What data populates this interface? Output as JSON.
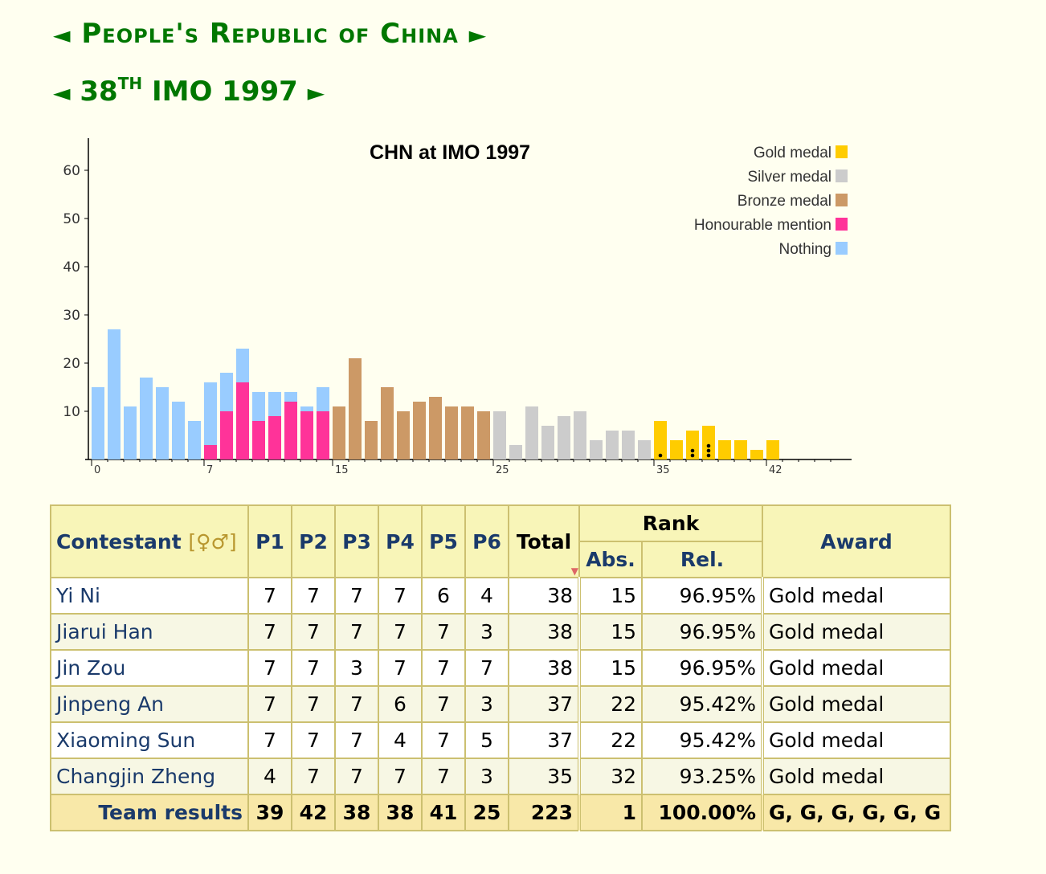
{
  "header": {
    "country_title": "People's Republic of China",
    "prev_arrow": "◄",
    "next_arrow": "►",
    "imo_prefix": "38",
    "imo_suffix": "TH",
    "imo_rest": "IMO 1997"
  },
  "chart_data": {
    "type": "bar",
    "title": "CHN at IMO 1997",
    "xlabel": "",
    "ylabel": "",
    "xlim": [
      0,
      42
    ],
    "ylim": [
      0,
      65
    ],
    "yticks": [
      10,
      20,
      30,
      40,
      50,
      60
    ],
    "xticks": [
      0,
      7,
      15,
      25,
      35,
      42
    ],
    "legend_position": "top-right",
    "colors": {
      "gold": "#ffcc00",
      "silver": "#cccccc",
      "bronze": "#cc9966",
      "hm": "#ff3399",
      "nothing": "#99ccff"
    },
    "legend": [
      {
        "label": "Gold medal",
        "key": "gold"
      },
      {
        "label": "Silver medal",
        "key": "silver"
      },
      {
        "label": "Bronze medal",
        "key": "bronze"
      },
      {
        "label": "Honourable mention",
        "key": "hm"
      },
      {
        "label": "Nothing",
        "key": "nothing"
      }
    ],
    "scores": [
      0,
      1,
      2,
      3,
      4,
      5,
      6,
      7,
      8,
      9,
      10,
      11,
      12,
      13,
      14,
      15,
      16,
      17,
      18,
      19,
      20,
      21,
      22,
      23,
      24,
      25,
      26,
      27,
      28,
      29,
      30,
      31,
      32,
      33,
      34,
      35,
      36,
      37,
      38,
      39,
      40,
      41,
      42
    ],
    "nothing": [
      15,
      27,
      11,
      17,
      15,
      12,
      8,
      13,
      8,
      7,
      6,
      5,
      2,
      1,
      5,
      0,
      0,
      0,
      0,
      0,
      0,
      0,
      0,
      0,
      0,
      0,
      0,
      0,
      0,
      0,
      0,
      0,
      0,
      0,
      0,
      0,
      0,
      0,
      0,
      0,
      0,
      0,
      0
    ],
    "hm": [
      0,
      0,
      0,
      0,
      0,
      0,
      0,
      3,
      10,
      16,
      8,
      9,
      12,
      10,
      10,
      0,
      0,
      0,
      0,
      0,
      0,
      0,
      0,
      0,
      0,
      0,
      0,
      0,
      0,
      0,
      0,
      0,
      0,
      0,
      0,
      0,
      0,
      0,
      0,
      0,
      0,
      0,
      0
    ],
    "bronze": [
      0,
      0,
      0,
      0,
      0,
      0,
      0,
      0,
      0,
      0,
      0,
      0,
      0,
      0,
      0,
      11,
      21,
      8,
      15,
      10,
      12,
      13,
      11,
      11,
      10,
      0,
      0,
      0,
      0,
      0,
      0,
      0,
      0,
      0,
      0,
      0,
      0,
      0,
      0,
      0,
      0,
      0,
      0
    ],
    "silver": [
      0,
      0,
      0,
      0,
      0,
      0,
      0,
      0,
      0,
      0,
      0,
      0,
      0,
      0,
      0,
      0,
      0,
      0,
      0,
      0,
      0,
      0,
      0,
      0,
      0,
      10,
      3,
      11,
      7,
      9,
      10,
      4,
      6,
      6,
      4,
      0,
      0,
      0,
      0,
      0,
      0,
      0,
      0
    ],
    "gold": [
      0,
      0,
      0,
      0,
      0,
      0,
      0,
      0,
      0,
      0,
      0,
      0,
      0,
      0,
      0,
      0,
      0,
      0,
      0,
      0,
      0,
      0,
      0,
      0,
      0,
      0,
      0,
      0,
      0,
      0,
      0,
      0,
      0,
      0,
      0,
      8,
      4,
      6,
      7,
      4,
      4,
      2,
      4
    ],
    "team_markers": [
      {
        "score": 35,
        "count": 1
      },
      {
        "score": 37,
        "count": 2
      },
      {
        "score": 38,
        "count": 3
      }
    ]
  },
  "table": {
    "headers": {
      "contestant": "Contestant",
      "gender": "[♀♂]",
      "p1": "P1",
      "p2": "P2",
      "p3": "P3",
      "p4": "P4",
      "p5": "P5",
      "p6": "P6",
      "total": "Total",
      "rank": "Rank",
      "abs": "Abs.",
      "rel": "Rel.",
      "award": "Award"
    },
    "rows": [
      {
        "name": "Yi Ni",
        "p1": "7",
        "p2": "7",
        "p3": "7",
        "p4": "7",
        "p5": "6",
        "p6": "4",
        "total": "38",
        "abs": "15",
        "rel": "96.95%",
        "award": "Gold medal"
      },
      {
        "name": "Jiarui Han",
        "p1": "7",
        "p2": "7",
        "p3": "7",
        "p4": "7",
        "p5": "7",
        "p6": "3",
        "total": "38",
        "abs": "15",
        "rel": "96.95%",
        "award": "Gold medal"
      },
      {
        "name": "Jin Zou",
        "p1": "7",
        "p2": "7",
        "p3": "3",
        "p4": "7",
        "p5": "7",
        "p6": "7",
        "total": "38",
        "abs": "15",
        "rel": "96.95%",
        "award": "Gold medal"
      },
      {
        "name": "Jinpeng An",
        "p1": "7",
        "p2": "7",
        "p3": "7",
        "p4": "6",
        "p5": "7",
        "p6": "3",
        "total": "37",
        "abs": "22",
        "rel": "95.42%",
        "award": "Gold medal"
      },
      {
        "name": "Xiaoming Sun",
        "p1": "7",
        "p2": "7",
        "p3": "7",
        "p4": "4",
        "p5": "7",
        "p6": "5",
        "total": "37",
        "abs": "22",
        "rel": "95.42%",
        "award": "Gold medal"
      },
      {
        "name": "Changjin Zheng",
        "p1": "4",
        "p2": "7",
        "p3": "7",
        "p4": "7",
        "p5": "7",
        "p6": "3",
        "total": "35",
        "abs": "32",
        "rel": "93.25%",
        "award": "Gold medal"
      }
    ],
    "team": {
      "label": "Team results",
      "p1": "39",
      "p2": "42",
      "p3": "38",
      "p4": "38",
      "p5": "41",
      "p6": "25",
      "total": "223",
      "abs": "1",
      "rel": "100.00%",
      "award": "G, G, G, G, G, G"
    }
  }
}
